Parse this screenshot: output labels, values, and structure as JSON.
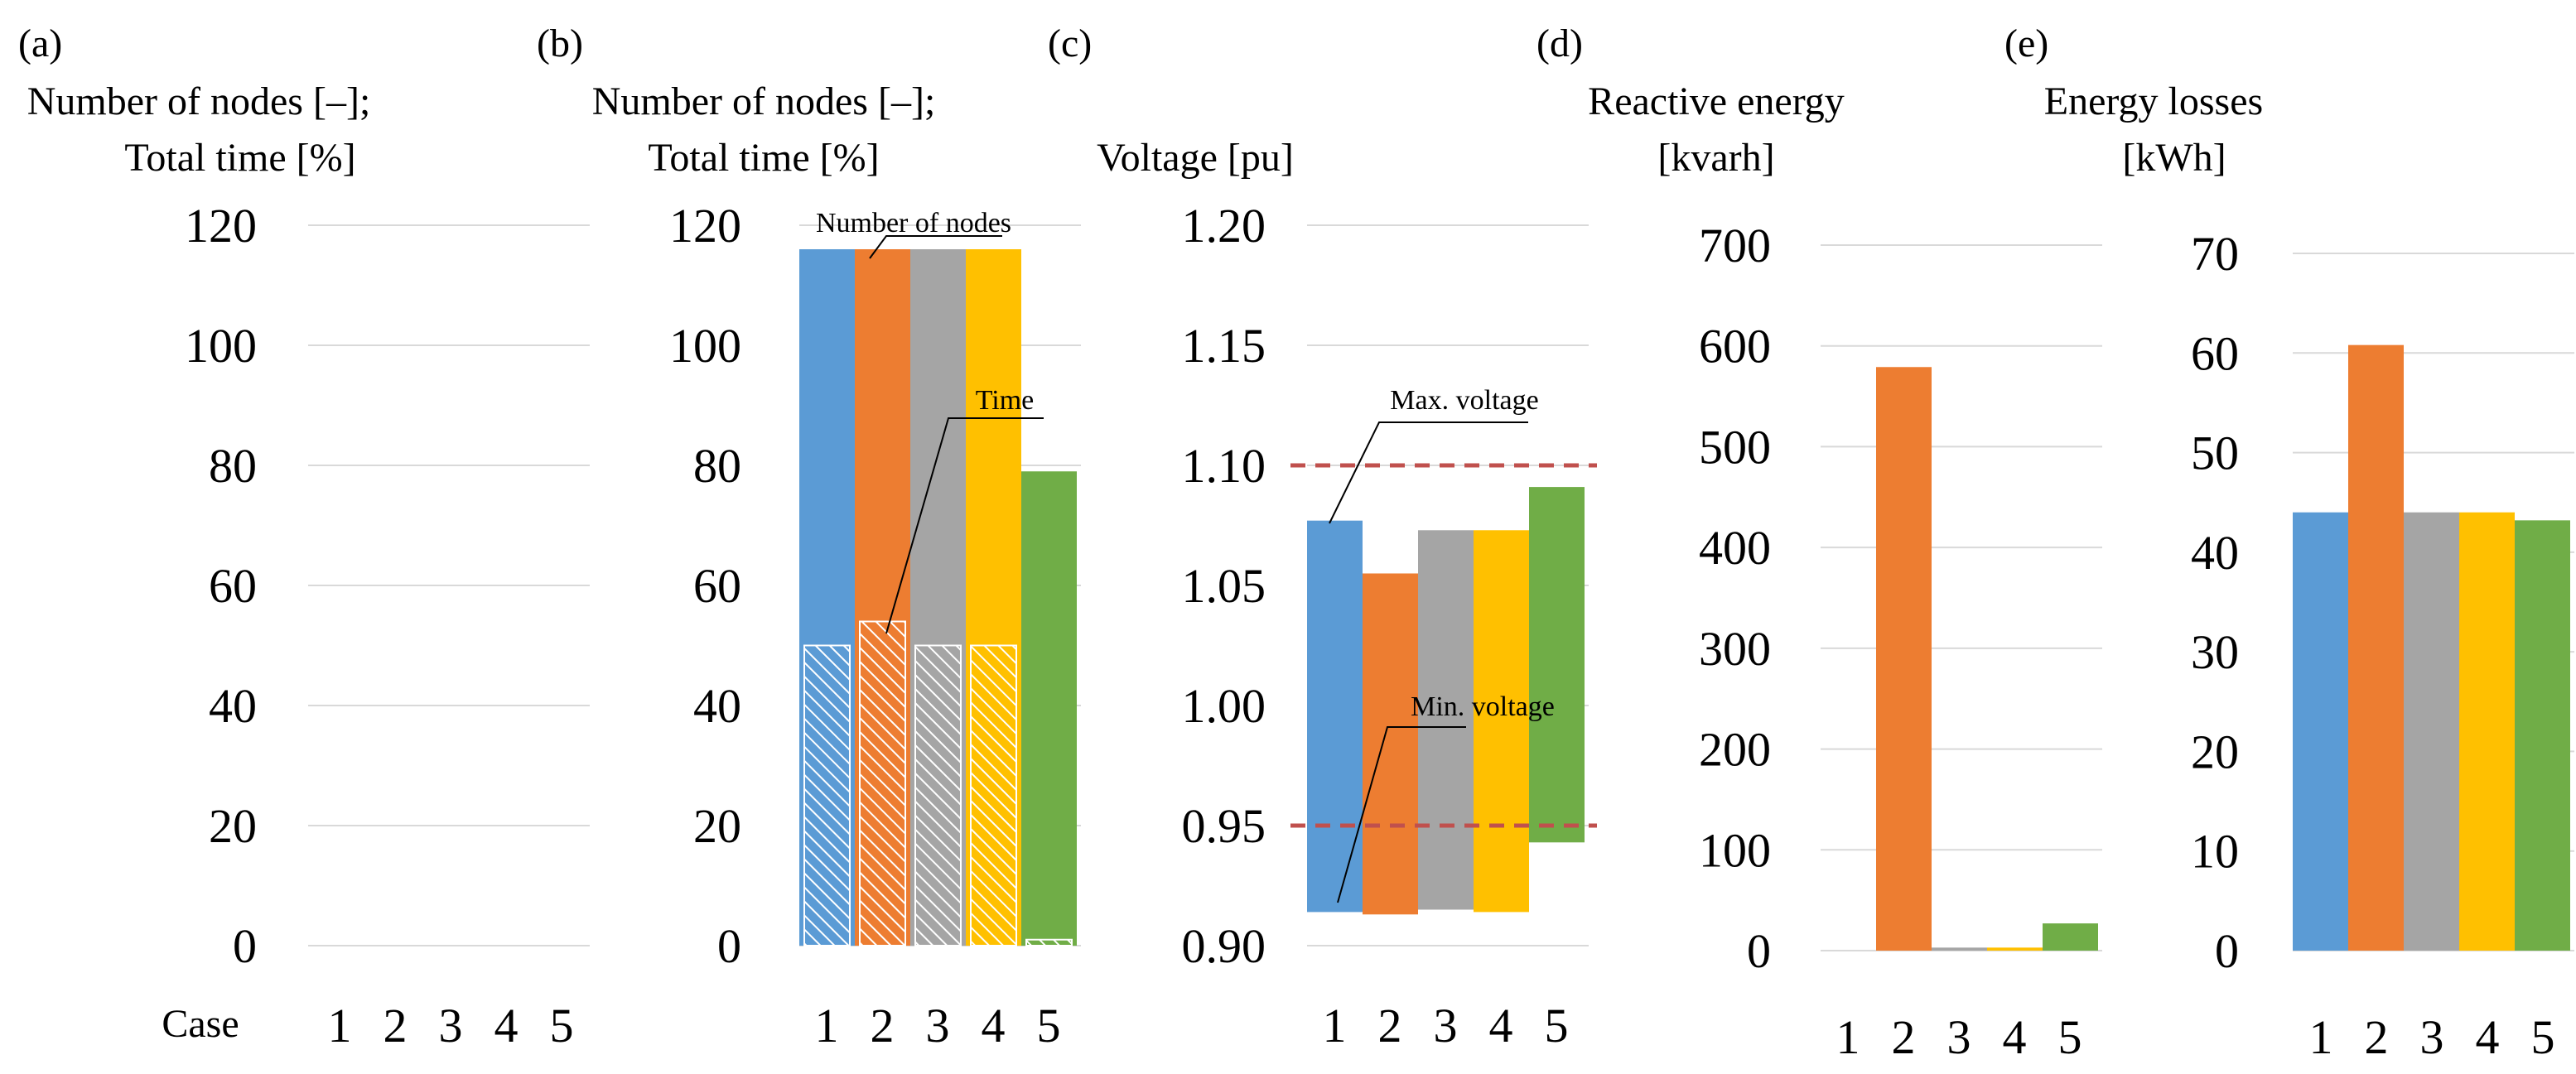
{
  "colors": {
    "case1": "#5B9BD5",
    "case2": "#ED7D31",
    "case3": "#A5A5A5",
    "case4": "#FFC000",
    "case5": "#70AD47",
    "limit_line": "#C0504D",
    "gridline": "#D9D9D9"
  },
  "chart_data": [
    {
      "id": "a",
      "panel_label": "(a)",
      "type": "bar",
      "title_lines": [
        "Number of nodes [–];",
        "Total time [%]"
      ],
      "xlabel": "Case",
      "categories": [
        "1",
        "2",
        "3",
        "4",
        "5"
      ],
      "ylim": [
        0,
        120
      ],
      "yticks": [
        "0",
        "20",
        "40",
        "60",
        "80",
        "100",
        "120"
      ],
      "series": [],
      "note": "empty panel"
    },
    {
      "id": "b",
      "panel_label": "(b)",
      "type": "bar",
      "title_lines": [
        "Number of nodes [–];",
        "Total time [%]"
      ],
      "categories": [
        "1",
        "2",
        "3",
        "4",
        "5"
      ],
      "ylim": [
        0,
        120
      ],
      "yticks": [
        "0",
        "20",
        "40",
        "60",
        "80",
        "100",
        "120"
      ],
      "series": [
        {
          "name": "Number of nodes",
          "values": [
            116,
            116,
            116,
            116,
            79
          ]
        },
        {
          "name": "Time",
          "values": [
            50,
            54,
            50,
            50,
            1
          ],
          "hatched": true
        }
      ],
      "annotations": [
        "Number of nodes",
        "Time"
      ]
    },
    {
      "id": "c",
      "panel_label": "(c)",
      "type": "floating-bar",
      "title_lines": [
        "Voltage [pu]"
      ],
      "categories": [
        "1",
        "2",
        "3",
        "4",
        "5"
      ],
      "ylim": [
        0.9,
        1.2
      ],
      "yticks": [
        "0.90",
        "0.95",
        "1.00",
        "1.05",
        "1.10",
        "1.15",
        "1.20"
      ],
      "series": [
        {
          "name": "Min. voltage",
          "values": [
            0.914,
            0.913,
            0.915,
            0.914,
            0.943
          ]
        },
        {
          "name": "Max. voltage",
          "values": [
            1.077,
            1.055,
            1.073,
            1.073,
            1.091
          ]
        }
      ],
      "limits": [
        1.1,
        0.95
      ],
      "annotations": [
        "Max. voltage",
        "Min. voltage"
      ]
    },
    {
      "id": "d",
      "panel_label": "(d)",
      "type": "bar",
      "title_lines": [
        "Reactive energy",
        "[kvarh]"
      ],
      "categories": [
        "1",
        "2",
        "3",
        "4",
        "5"
      ],
      "ylim": [
        0,
        700
      ],
      "yticks": [
        "0",
        "100",
        "200",
        "300",
        "400",
        "500",
        "600",
        "700"
      ],
      "series": [
        {
          "name": "Reactive energy",
          "values": [
            0,
            579,
            3,
            3,
            27
          ]
        }
      ]
    },
    {
      "id": "e",
      "panel_label": "(e)",
      "type": "bar",
      "title_lines": [
        "Energy losses",
        "[kWh]"
      ],
      "categories": [
        "1",
        "2",
        "3",
        "4",
        "5"
      ],
      "ylim": [
        0,
        70
      ],
      "yticks": [
        "0",
        "10",
        "20",
        "30",
        "40",
        "50",
        "60",
        "70"
      ],
      "series": [
        {
          "name": "Energy losses",
          "values": [
            44.0,
            60.8,
            44.0,
            44.0,
            43.2
          ]
        }
      ]
    }
  ]
}
